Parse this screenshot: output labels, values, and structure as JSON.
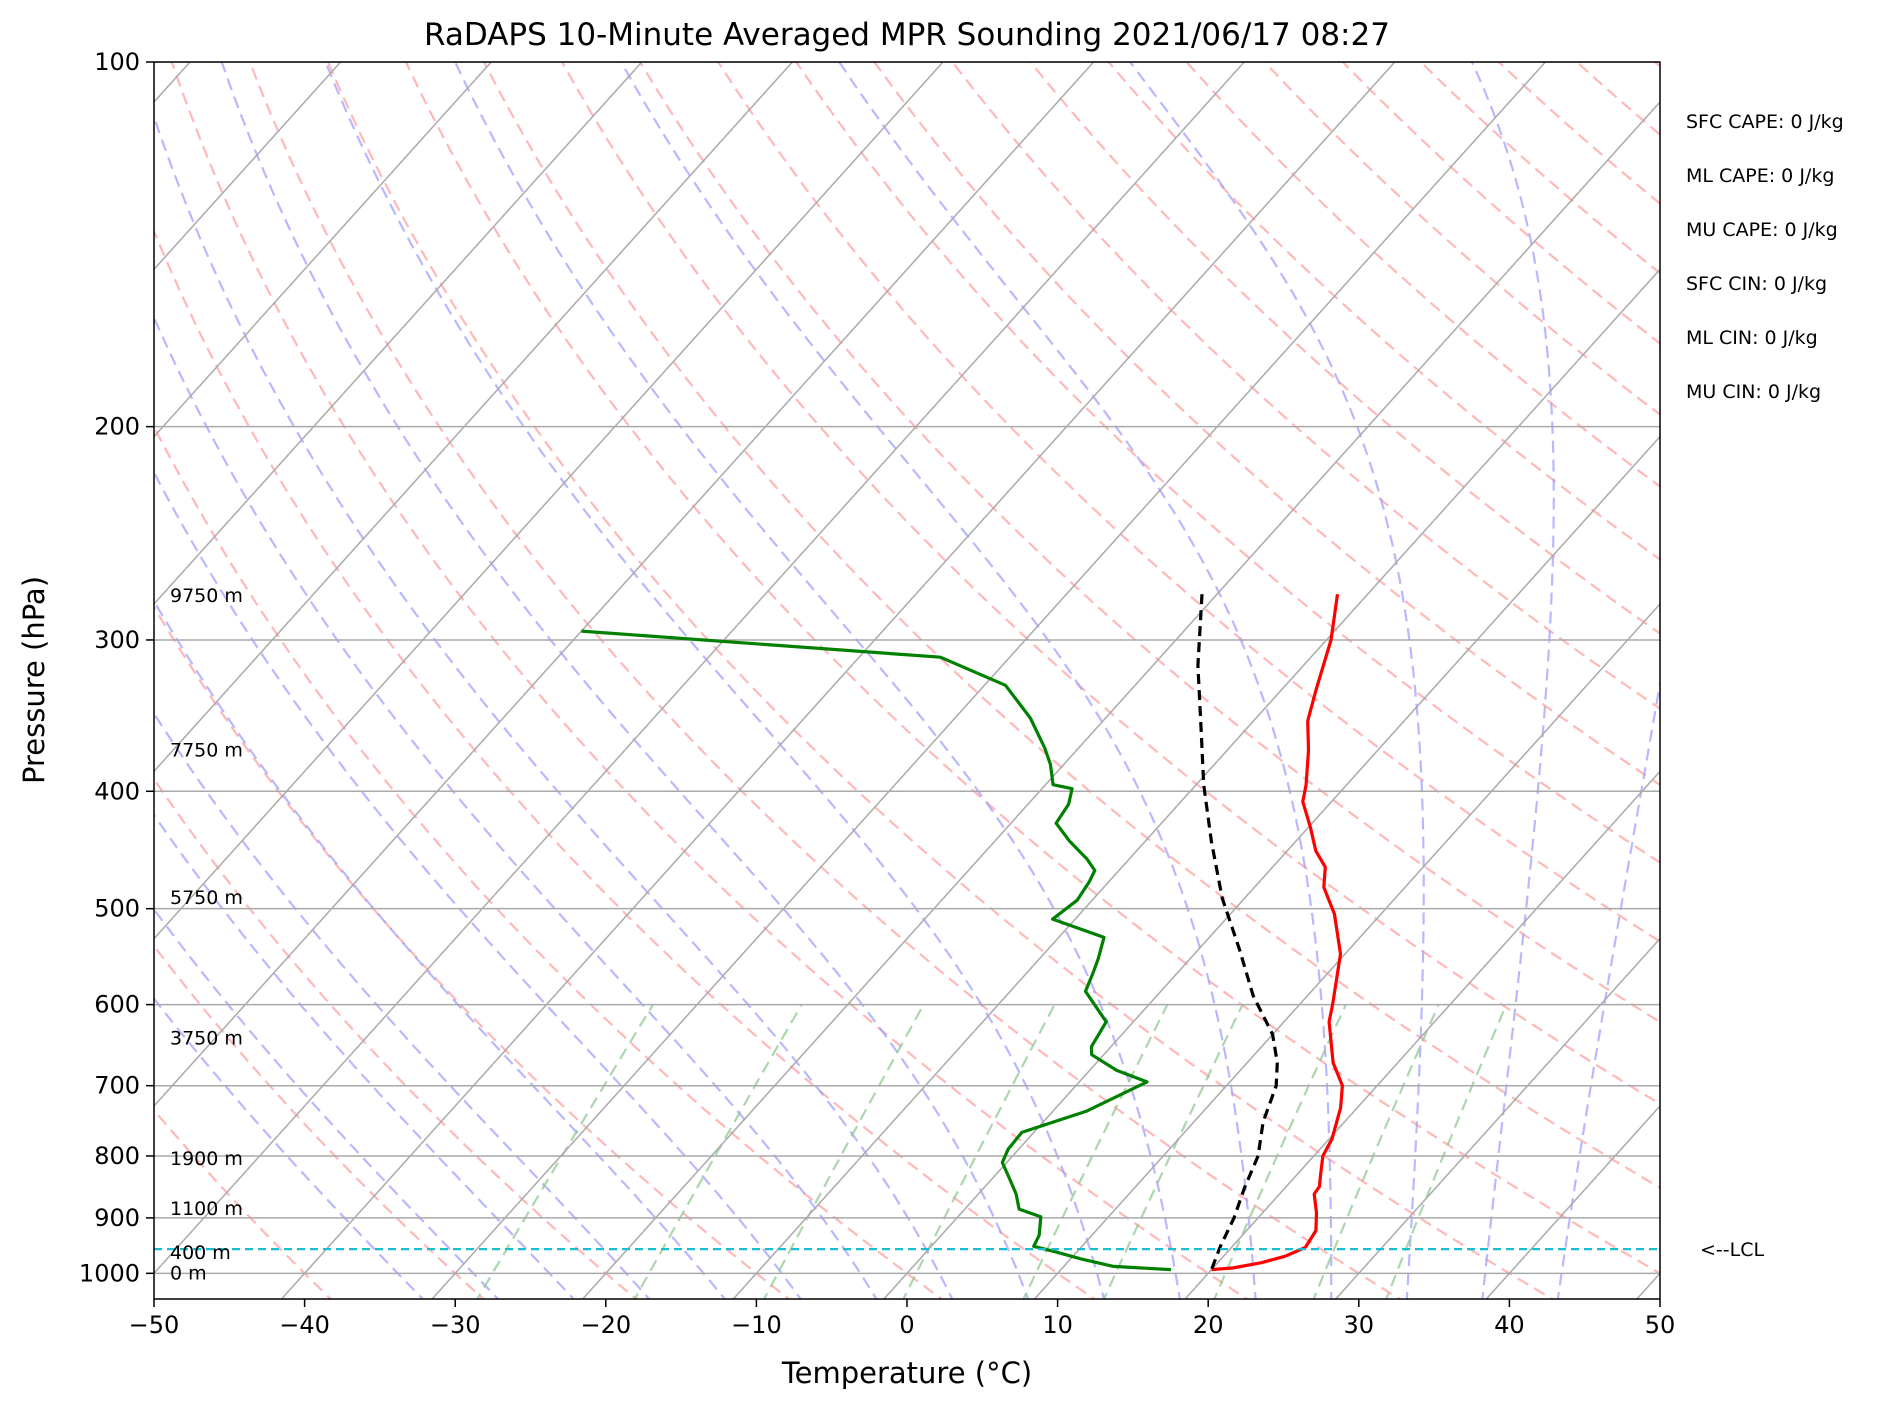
{
  "chart_data": {
    "type": "line",
    "title": "RaDAPS 10-Minute Averaged MPR Sounding 2021/06/17 08:27",
    "xlabel": "Temperature (°C)",
    "ylabel": "Pressure (hPa)",
    "xlim": [
      -50,
      50
    ],
    "ylim": [
      1050,
      100
    ],
    "y_scale": "log",
    "grid": true,
    "x_ticks": [
      "−50",
      "−40",
      "−30",
      "−20",
      "−10",
      "0",
      "10",
      "20",
      "30",
      "40",
      "50"
    ],
    "y_ticks": [
      "100",
      "200",
      "300",
      "400",
      "500",
      "600",
      "700",
      "800",
      "900",
      "1000"
    ],
    "height_labels": [
      {
        "text": "9750 m",
        "pressure": 276
      },
      {
        "text": "7750 m",
        "pressure": 370
      },
      {
        "text": "5750 m",
        "pressure": 490
      },
      {
        "text": "3750 m",
        "pressure": 640
      },
      {
        "text": "1900 m",
        "pressure": 805
      },
      {
        "text": "1100 m",
        "pressure": 885
      },
      {
        "text": "400 m",
        "pressure": 962
      },
      {
        "text": "0 m",
        "pressure": 1000
      }
    ],
    "indices": [
      "SFC CAPE: 0 J/kg",
      "ML CAPE: 0 J/kg",
      "MU CAPE: 0 J/kg",
      "SFC CIN: 0 J/kg",
      "ML CIN: 0 J/kg",
      "MU CIN: 0 J/kg"
    ],
    "lcl": {
      "label": "<--LCL",
      "pressure": 955
    },
    "colors": {
      "temperature": "#ff0000",
      "dewpoint": "#008000",
      "parcel": "#000000",
      "lcl": "#17becf",
      "isotherm": "#aaaaaa",
      "dry_adiabat": "#ffa0a0",
      "moist_adiabat": "#a0a0ff",
      "mixing_ratio": "#90c890"
    },
    "series": [
      {
        "key": "temperature",
        "points": [
          [
            -12.0,
            275
          ],
          [
            -9.7,
            300
          ],
          [
            -7.7,
            330
          ],
          [
            -6.4,
            350
          ],
          [
            -4.6,
            370
          ],
          [
            -2.7,
            395
          ],
          [
            -1.9,
            408
          ],
          [
            0.1,
            428
          ],
          [
            1.9,
            448
          ],
          [
            3.5,
            462
          ],
          [
            4.6,
            480
          ],
          [
            6.9,
            505
          ],
          [
            9.7,
            545
          ],
          [
            12.2,
            600
          ],
          [
            13.0,
            620
          ],
          [
            15.7,
            670
          ],
          [
            17.7,
            700
          ],
          [
            18.9,
            730
          ],
          [
            20.2,
            775
          ],
          [
            20.6,
            800
          ],
          [
            21.6,
            830
          ],
          [
            22.2,
            848
          ],
          [
            22.3,
            860
          ],
          [
            23.6,
            892
          ],
          [
            24.6,
            922
          ],
          [
            24.9,
            952
          ],
          [
            24.1,
            968
          ],
          [
            22.9,
            980
          ],
          [
            21.3,
            990
          ],
          [
            20.0,
            993
          ]
        ]
      },
      {
        "key": "dewpoint",
        "points": [
          [
            -60.0,
            295
          ],
          [
            -34.6,
            310
          ],
          [
            -28.6,
            327
          ],
          [
            -25.0,
            348
          ],
          [
            -22.3,
            368
          ],
          [
            -20.9,
            380
          ],
          [
            -19.5,
            395
          ],
          [
            -18.0,
            398
          ],
          [
            -17.3,
            410
          ],
          [
            -17.0,
            425
          ],
          [
            -15.0,
            440
          ],
          [
            -12.8,
            455
          ],
          [
            -11.6,
            465
          ],
          [
            -11.3,
            475
          ],
          [
            -11.0,
            492
          ],
          [
            -11.5,
            510
          ],
          [
            -7.0,
            528
          ],
          [
            -6.1,
            550
          ],
          [
            -5.6,
            565
          ],
          [
            -5.0,
            585
          ],
          [
            -1.8,
            620
          ],
          [
            -1.3,
            650
          ],
          [
            -0.8,
            660
          ],
          [
            1.8,
            680
          ],
          [
            4.5,
            695
          ],
          [
            2.2,
            735
          ],
          [
            -0.8,
            765
          ],
          [
            -0.7,
            790
          ],
          [
            -0.3,
            810
          ],
          [
            1.3,
            838
          ],
          [
            2.5,
            860
          ],
          [
            3.6,
            885
          ],
          [
            5.5,
            898
          ],
          [
            6.5,
            930
          ],
          [
            6.8,
            950
          ],
          [
            8.6,
            960
          ],
          [
            10.7,
            973
          ],
          [
            13.3,
            987
          ],
          [
            17.3,
            993
          ]
        ]
      },
      {
        "key": "parcel",
        "points": [
          [
            -21.0,
            275
          ],
          [
            -17.0,
            315
          ],
          [
            -13.5,
            350
          ],
          [
            -9.5,
            395
          ],
          [
            -5.6,
            440
          ],
          [
            -1.5,
            490
          ],
          [
            2.7,
            540
          ],
          [
            6.4,
            590
          ],
          [
            10.0,
            635
          ],
          [
            12.0,
            670
          ],
          [
            13.3,
            700
          ],
          [
            14.6,
            750
          ],
          [
            16.3,
            800
          ],
          [
            17.3,
            850
          ],
          [
            18.4,
            900
          ],
          [
            19.2,
            950
          ],
          [
            20.0,
            993
          ]
        ]
      }
    ]
  }
}
